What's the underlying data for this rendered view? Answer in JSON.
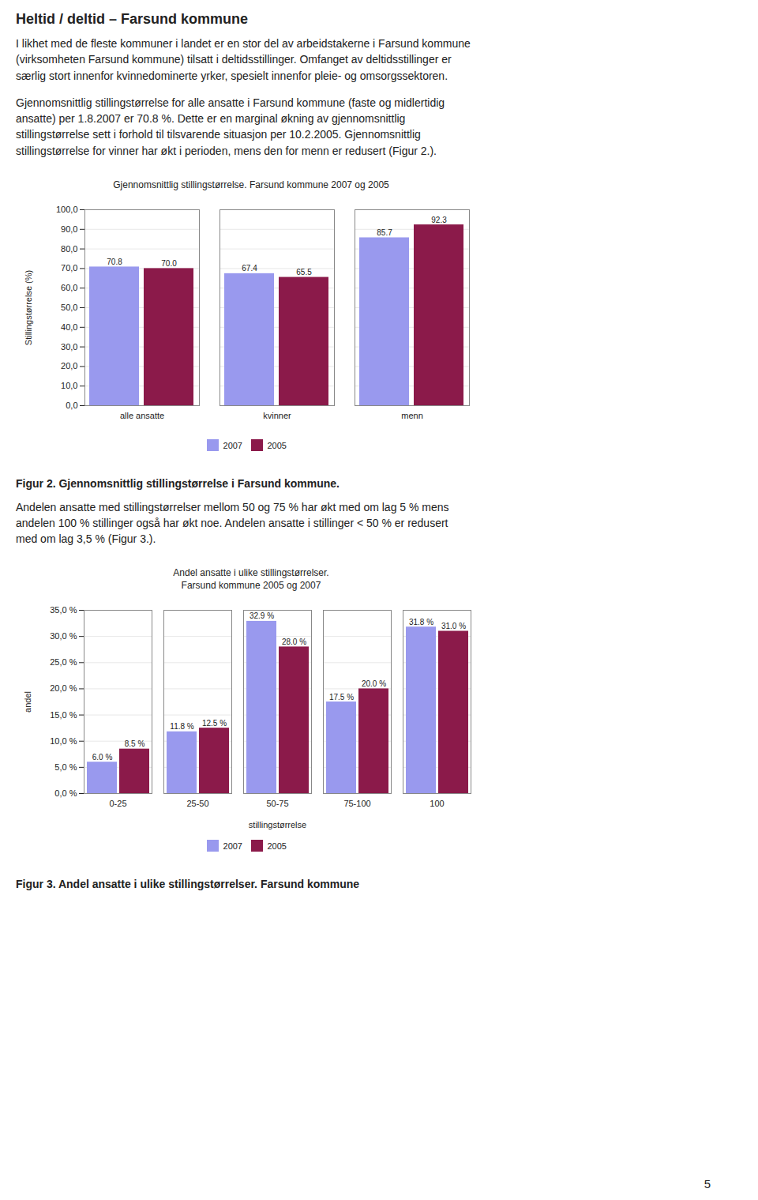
{
  "title": "Heltid / deltid – Farsund kommune",
  "page_number": "5",
  "chart_data": [
    {
      "type": "bar",
      "annotations": [
        "I likhet med de fleste kommuner i landet er en stor del av arbeidstakerne i Farsund kommune\n(virksomheten Farsund kommune) tilsatt i deltidsstillinger. Omfanget av deltidsstillinger er\nsærlig stort innenfor kvinnedominerte yrker, spesielt innenfor pleie- og omsorgssektoren.",
        "Gjennomsnittlig stillingstørrelse for alle ansatte i Farsund kommune (faste og midlertidig\nansatte) per 1.8.2007 er 70.8 %. Dette er en marginal økning av gjennomsnittlig\nstillingstørrelse sett i forhold til tilsvarende situasjon per 10.2.2005. Gjennomsnittlig\nstillingstørrelse for vinner har økt i perioden, mens den for menn er redusert (Figur 2.)."
      ],
      "title": "Gjennomsnittlig stillingstørrelse. Farsund kommune 2007 og 2005",
      "categories": [
        "alle ansatte",
        "kvinner",
        "menn"
      ],
      "series": [
        {
          "name": "2007",
          "color": "#9999EE",
          "values": [
            70.8,
            67.4,
            85.7
          ],
          "value_labels": [
            "70.8",
            "67.4",
            "85.7"
          ]
        },
        {
          "name": "2005",
          "color": "#8B1A4A",
          "values": [
            70.0,
            65.5,
            92.3
          ],
          "value_labels": [
            "70.0",
            "65.5",
            "92.3"
          ]
        }
      ],
      "ylabel": "Stillingstørrelse (%)",
      "ylim": [
        0,
        100
      ],
      "yticks": [
        {
          "value": 0,
          "label": "0,0"
        },
        {
          "value": 10,
          "label": "10,0"
        },
        {
          "value": 20,
          "label": "20,0"
        },
        {
          "value": 30,
          "label": "30,0"
        },
        {
          "value": 40,
          "label": "40,0"
        },
        {
          "value": 50,
          "label": "50,0"
        },
        {
          "value": 60,
          "label": "60,0"
        },
        {
          "value": 70,
          "label": "70,0"
        },
        {
          "value": 80,
          "label": "80,0"
        },
        {
          "value": 90,
          "label": "90,0"
        },
        {
          "value": 100,
          "label": "100,0"
        }
      ],
      "grid": true,
      "legend": "bottom",
      "data_labels": true,
      "caption": "Figur 2. Gjennomsnittlig stillingstørrelse i Farsund kommune."
    },
    {
      "type": "bar",
      "annotations": [
        "Andelen ansatte med stillingstørrelser mellom 50 og 75 % har økt med om lag 5 % mens\nandelen 100 % stillinger også har økt noe. Andelen ansatte i stillinger < 50 % er redusert\nmed om lag 3,5 % (Figur 3.)."
      ],
      "title": "Andel ansatte i ulike stillingstørrelser.",
      "subtitle": "Farsund kommune 2005 og 2007",
      "categories": [
        "0-25",
        "25-50",
        "50-75",
        "75-100",
        "100"
      ],
      "series": [
        {
          "name": "2007",
          "color": "#9999EE",
          "values": [
            6.0,
            11.8,
            32.9,
            17.5,
            31.8
          ],
          "value_labels": [
            "6.0 %",
            "11.8 %",
            "32.9 %",
            "17.5 %",
            "31.8 %"
          ]
        },
        {
          "name": "2005",
          "color": "#8B1A4A",
          "values": [
            8.5,
            12.5,
            28.0,
            20.0,
            31.0
          ],
          "value_labels": [
            "8.5 %",
            "12.5 %",
            "28.0 %",
            "20.0 %",
            "31.0 %"
          ]
        }
      ],
      "xlabel": "stillingstørrelse",
      "ylabel": "andel",
      "ylim": [
        0,
        35
      ],
      "yticks": [
        {
          "value": 0,
          "label": "0,0 %"
        },
        {
          "value": 5,
          "label": "5,0 %"
        },
        {
          "value": 10,
          "label": "10,0 %"
        },
        {
          "value": 15,
          "label": "15,0 %"
        },
        {
          "value": 20,
          "label": "20,0 %"
        },
        {
          "value": 25,
          "label": "25,0 %"
        },
        {
          "value": 30,
          "label": "30,0 %"
        },
        {
          "value": 35,
          "label": "35,0 %"
        }
      ],
      "grid": true,
      "legend": "bottom",
      "data_labels": true,
      "caption": "Figur 3. Andel ansatte i ulike stillingstørrelser. Farsund kommune"
    }
  ]
}
